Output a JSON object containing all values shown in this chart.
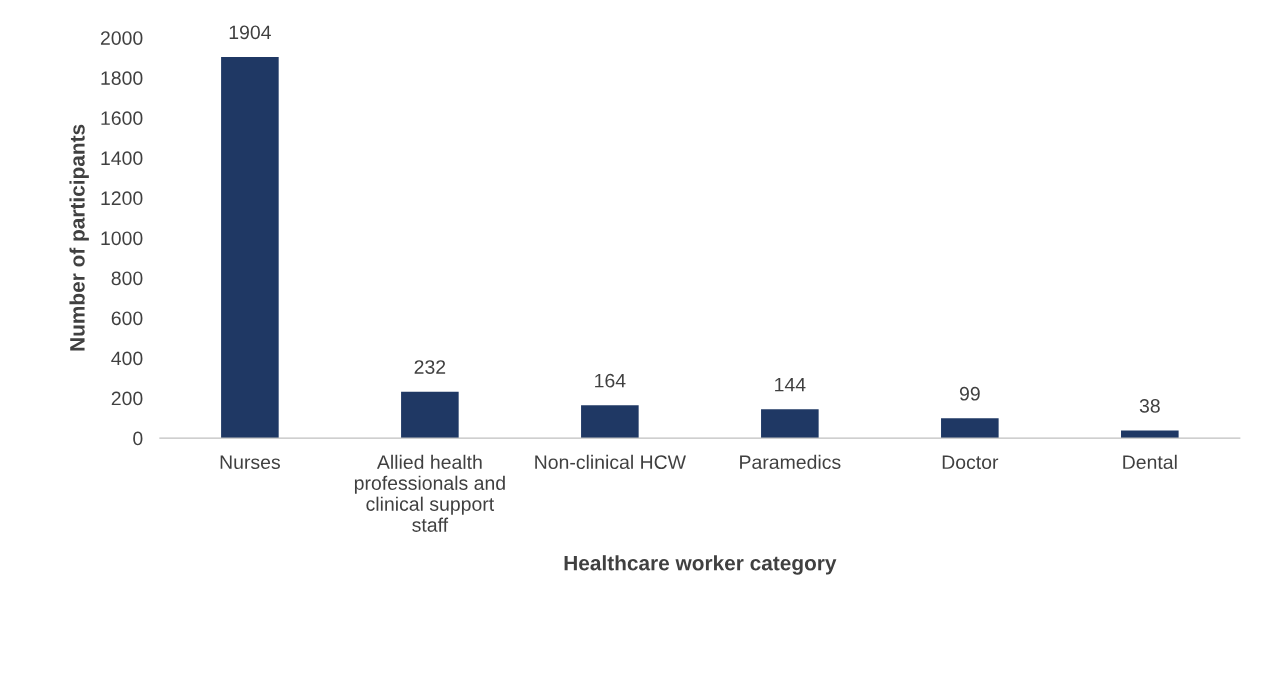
{
  "chart_data": {
    "type": "bar",
    "xlabel": "Healthcare worker category",
    "ylabel": "Number of participants",
    "categories": [
      "Nurses",
      "Allied health professionals and clinical support staff",
      "Non-clinical HCW",
      "Paramedics",
      "Doctor",
      "Dental"
    ],
    "values": [
      1904,
      232,
      164,
      144,
      99,
      38
    ],
    "color": "#1f3864",
    "ylim": [
      0,
      2000
    ],
    "yticks": [
      0,
      200,
      400,
      600,
      800,
      1000,
      1200,
      1400,
      1600,
      1800,
      2000
    ],
    "data_labels": true,
    "grid": false,
    "legend": false
  }
}
